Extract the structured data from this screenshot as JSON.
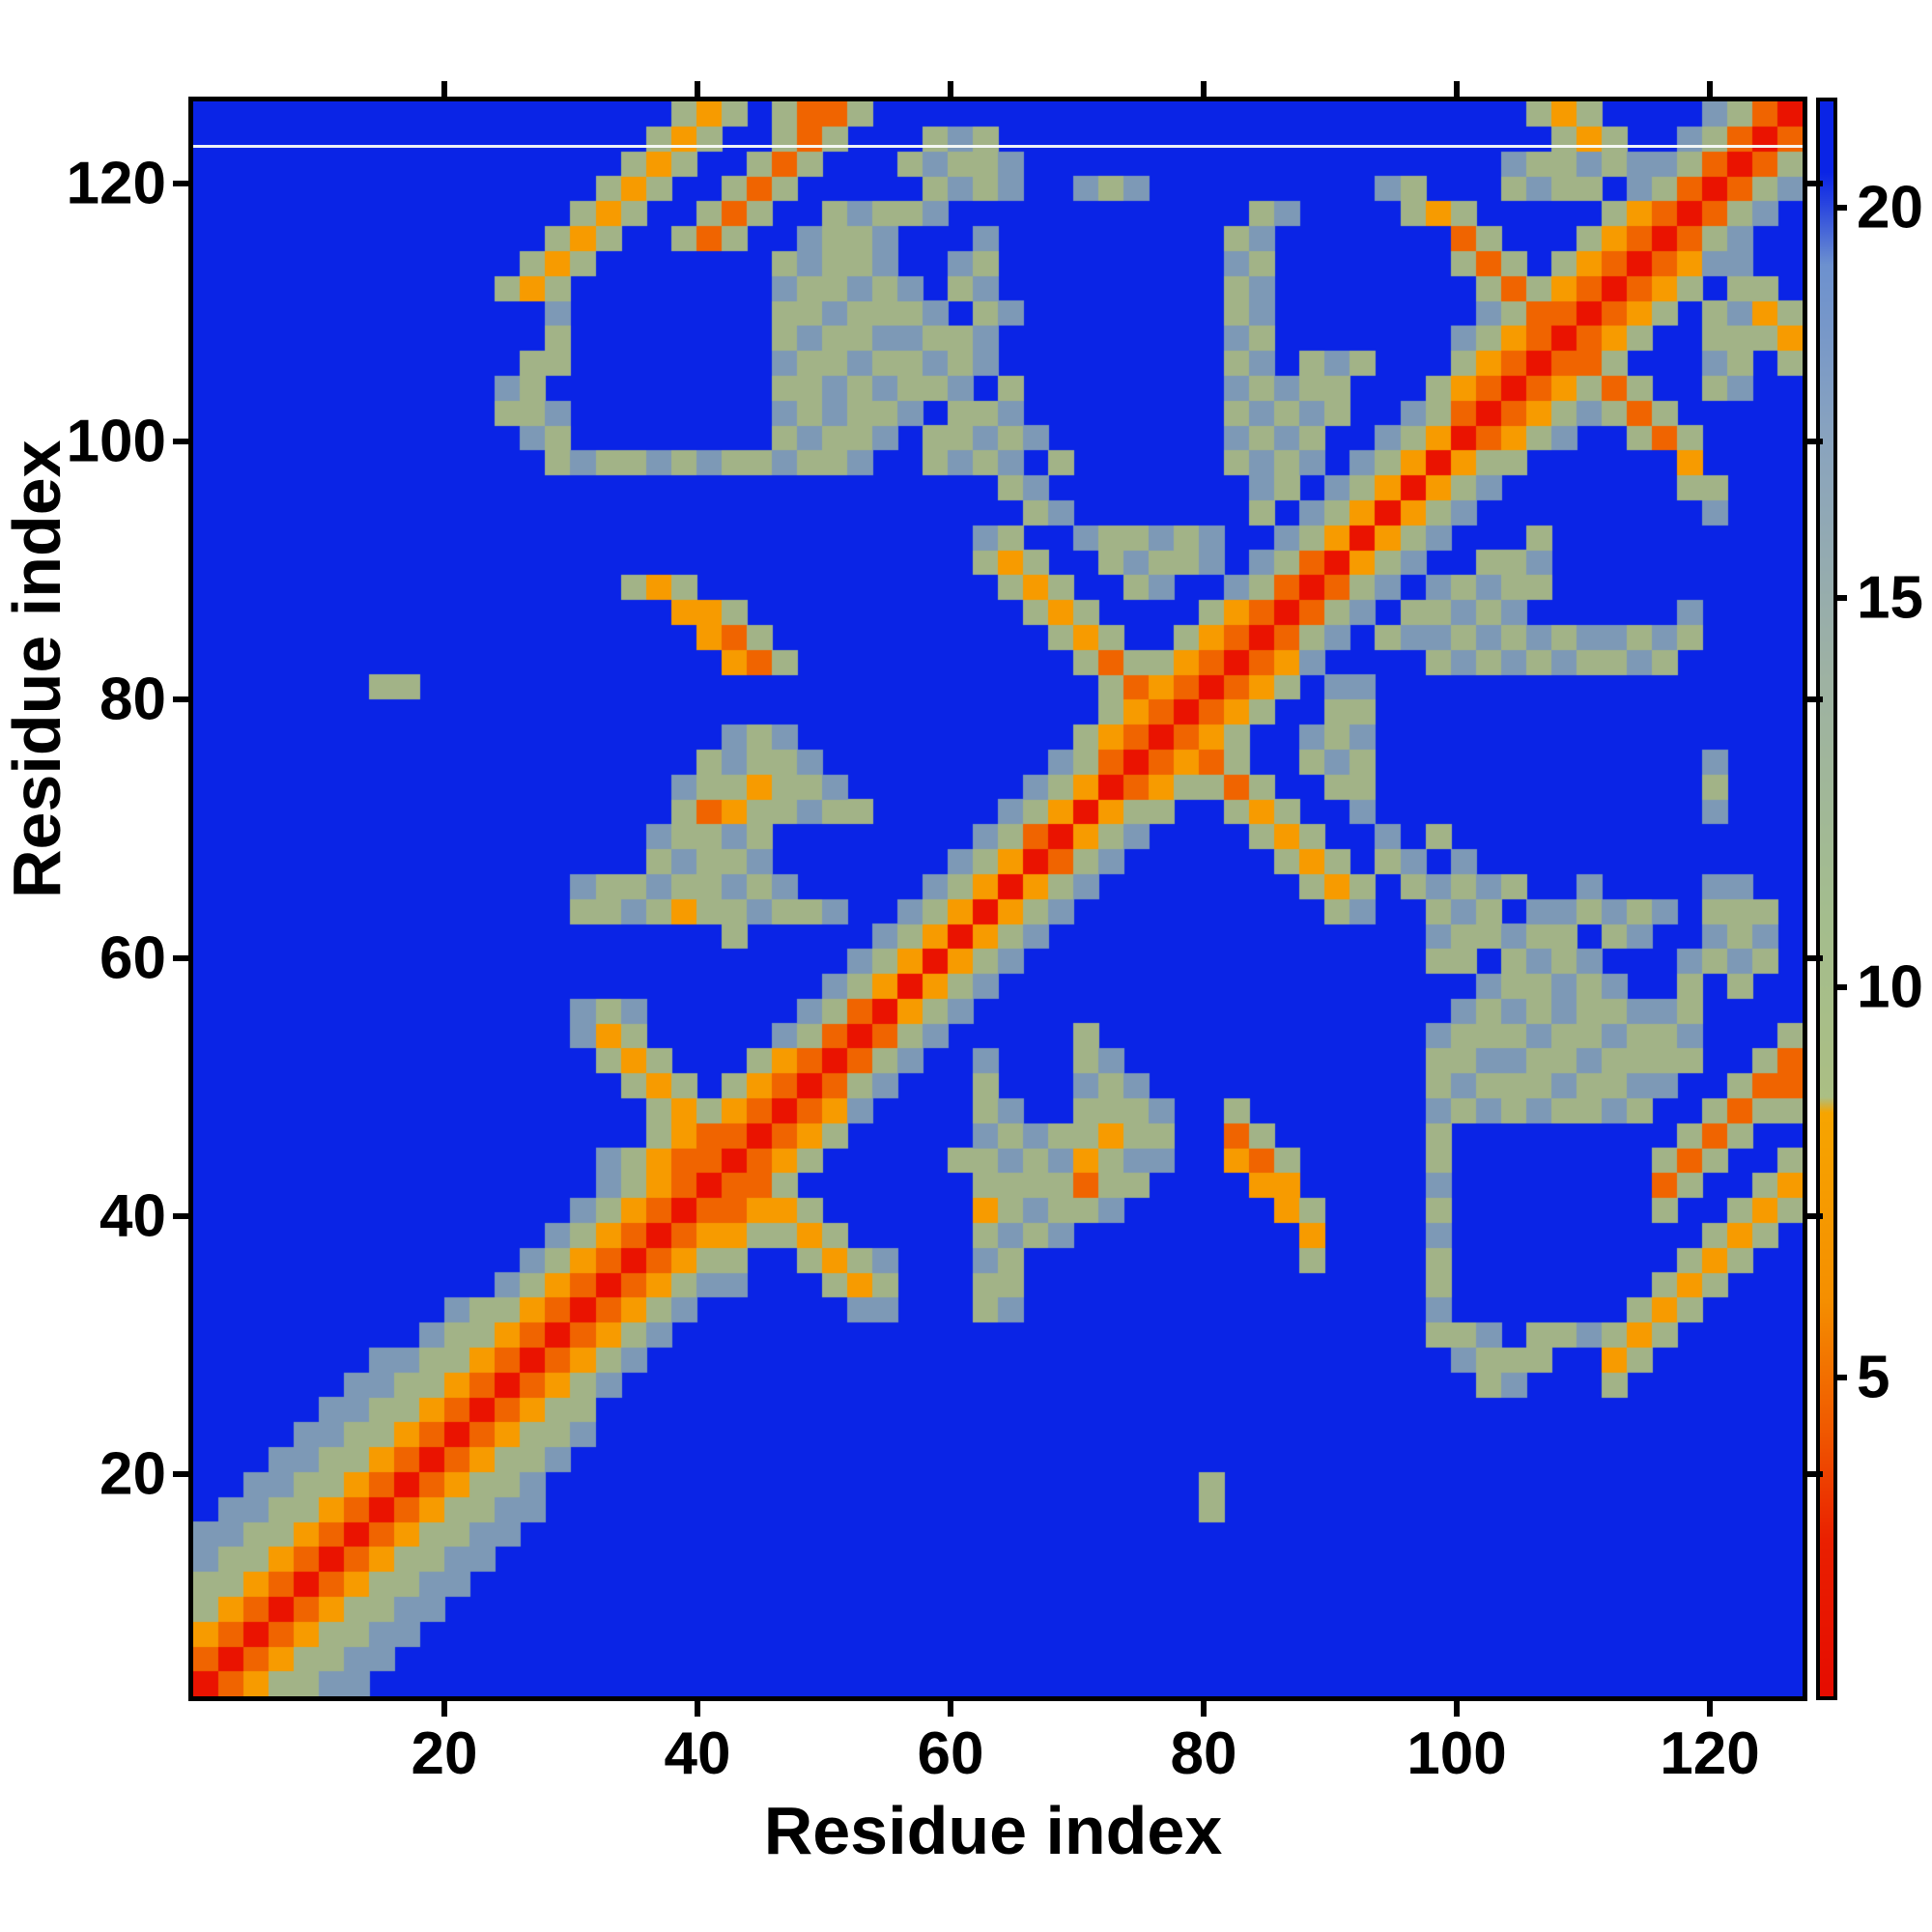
{
  "chart_data": {
    "type": "heatmap",
    "title": "",
    "xlabel": "Residue index",
    "ylabel": "Residue index",
    "x_ticks": [
      20,
      40,
      60,
      80,
      100,
      120
    ],
    "y_ticks": [
      20,
      40,
      60,
      80,
      100,
      120
    ],
    "x_range": [
      1,
      127
    ],
    "y_range": [
      1,
      127
    ],
    "n_residues": 127,
    "grid": false,
    "legend_position": "right-colorbar",
    "colorbar": {
      "ticks": [
        5,
        10,
        15,
        20
      ],
      "value_at_top": 21.4,
      "value_at_bottom": 0.9,
      "stops": [
        [
          0.9,
          "#e60c00"
        ],
        [
          2.9,
          "#ea2000"
        ],
        [
          4.3,
          "#f05800"
        ],
        [
          6.0,
          "#f58f00"
        ],
        [
          8.4,
          "#f7a500"
        ],
        [
          8.6,
          "#abbf84"
        ],
        [
          11.0,
          "#a4bd8e"
        ],
        [
          14.0,
          "#9eb2a3"
        ],
        [
          17.0,
          "#8aa4be"
        ],
        [
          19.3,
          "#6d91cf"
        ],
        [
          20.1,
          "#2743e0"
        ],
        [
          20.5,
          "#0a24e6"
        ],
        [
          21.4,
          "#0a24e6"
        ]
      ]
    },
    "palette": {
      ".": "#0a24e6",
      "-": "#7d99b6",
      "g": "#a2b387",
      "o": "#f79b00",
      "O": "#f06400",
      "R": "#ea1300"
    },
    "matrix_encoding": {
      "bins": 64,
      "residues_per_bin": 2,
      "codes_to_distance": {
        ".": 21,
        "-": 18,
        "g": 12,
        "o": 7,
        "O": 5,
        "R": 3.5
      },
      "note": "Symmetric matrix; matrix_upper[b] holds bins 0..b (x) of row b (y); value(i,j)=matrix_upper[max(i,j)][min(i,j)]"
    },
    "matrix_upper": [
      "R",
      "OR",
      "oOR",
      "goOR",
      "ggoOR",
      "-ggoOR",
      "--ggoOR",
      ".--ggoOR",
      "..--ggoOR",
      "...--ggoOR",
      "....--ggoOR",
      ".....--ggoOR",
      "......--ggoOR",
      ".......--ggoOR",
      ".........-ggoOR",
      "..........-ggoOR",
      "............-goOR",
      ".............-goOR",
      "..............-goOR",
      "...............-goOR",
      "................-goOR",
      "................-goOOR",
      "..................goOOR",
      "..................gogoOR",
      ".................gog.goOR",
      "................gog...goOR",
      "...............-og.....-gOR",
      "...............-g-......-gOR",
      ".........................-goR",
      "..........................-goR",
      ".....................g.....-goR",
      "...............gg-gogg-gg-..-goR",
      "...............-gg-gg-g-.....-goR",
      "..................g-gg-.......-goR",
      "..................-gg-g........-gOR",
      "...................gOogg-gg.....-goR",
      "...................-ggogg-.......-goR",
      "....................g-gg-.........-gOR",
      ".....................-g-...........goOR",
      "....................................goOR",
      ".......gg...........................gOoOR",
      ".....................oOg...........gOggoOR",
      "....................oOg...........gog..goOR",
      "...................oog...........gog....goOR",
      ".................gog............gog..g-..-gOR",
      "...............................gog..g-gg-.-gOR",
      "...............................-g..-gg-g-..-goR",
      ".................................g-.......g.-goR",
      "................................g-........-g.-goR",
      "..............g-gg-g-gg-gg-..g-g-.g......g-g-.-goR",
      ".............-g........g-gg-.gg-g-.......-g-g..-goR",
      "............gg-........-g-gg-.gg-........g-g-g..-gOR",
      "............-g.........gg-g-gg-.g........-g-gg...goOR",
      ".............gg........-gg-gg-g-.........g-.g-g...goOR",
      "..............g........g-gg--gg-.........-g.......-goOR",
      "..............-........gg-ggg-.g-........g-........-gOOR",
      "............gog........-gg-g-.g-.........g-........gOgoOR",
      ".............gog.......g-gg-..-g.........-g.......gOg.goOR",
      "..............gog..gOg..-gg-...-.........g-.......Og...goOR",
      "...............gog..gOg..g-gg-............g-....gog.....goOR",
      "................gog..gOg.....g-g-..-g-.........-g...g-gg.-gOR",
      ".................gog..gOg...g-gg-...................-gg-g--gOR",
      "..................gog..gOg...g-g......................gog..-gOR",
      "...................gog.gOOg..........................gog....-gOR"
    ],
    "artifact_line": {
      "residue": 123,
      "color": "#f7faf7"
    }
  },
  "labels": {
    "x_axis_title": "Residue index",
    "y_axis_title": "Residue index"
  }
}
